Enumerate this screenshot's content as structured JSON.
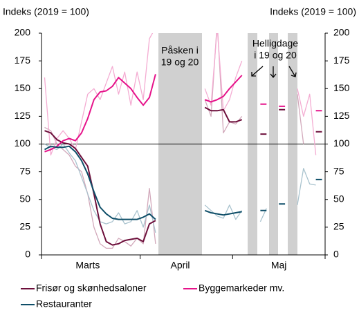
{
  "chart_data": {
    "type": "line",
    "y_label": "Indeks  (2019 = 100)",
    "y2_label": "Indeks  (2019 = 100)",
    "categories": [
      null,
      null,
      null,
      null,
      null,
      null,
      null,
      "Marts",
      null,
      null,
      null,
      null,
      null,
      null,
      null,
      null,
      null,
      null,
      null,
      null,
      null,
      null,
      "April",
      null,
      null,
      null,
      null,
      null,
      null,
      null,
      null,
      null,
      null,
      null,
      null,
      null,
      null,
      null,
      "Maj",
      null,
      null,
      null,
      null,
      null,
      null,
      null
    ],
    "ylim": [
      0,
      200
    ],
    "yticks": [
      0,
      25,
      50,
      75,
      100,
      125,
      150,
      175,
      200
    ],
    "y2lim": [
      0,
      200
    ],
    "y2ticks": [
      0,
      25,
      50,
      75,
      100,
      125,
      150,
      175,
      200
    ],
    "hline": 100,
    "annotations": [
      [
        "Påsken i",
        "19 og 20"
      ],
      [
        "Helligdage",
        "i 19 og 20"
      ]
    ],
    "series": [
      {
        "color": "#d2a9bb",
        "values": [
          115,
          112,
          100,
          95,
          90,
          80,
          75,
          55,
          25,
          10,
          6,
          6,
          15,
          12,
          8,
          15,
          10,
          60,
          10,
          null,
          null,
          null,
          null,
          null,
          null,
          null,
          140,
          125,
          210,
          110,
          120,
          118,
          125,
          null,
          null,
          null,
          null,
          null,
          null,
          null,
          null,
          145,
          100,
          null,
          null,
          null
        ]
      },
      {
        "color": "#f4acd2",
        "values": [
          160,
          90,
          105,
          112,
          105,
          95,
          120,
          145,
          150,
          140,
          155,
          170,
          145,
          165,
          135,
          165,
          140,
          195,
          205,
          null,
          null,
          null,
          null,
          null,
          null,
          null,
          150,
          135,
          205,
          130,
          140,
          160,
          175,
          null,
          null,
          null,
          null,
          null,
          null,
          null,
          null,
          150,
          125,
          145,
          90,
          null
        ]
      },
      {
        "color": "#a9c3ce",
        "values": [
          100,
          97,
          95,
          100,
          92,
          85,
          70,
          55,
          40,
          30,
          28,
          30,
          38,
          28,
          30,
          40,
          25,
          45,
          20,
          null,
          null,
          null,
          null,
          null,
          null,
          null,
          45,
          40,
          35,
          33,
          45,
          32,
          40,
          null,
          null,
          30,
          42,
          null,
          null,
          null,
          null,
          45,
          78,
          64,
          63,
          null
        ]
      },
      {
        "name": "Frisør og skønhedsaloner",
        "color": "#6d0f3b",
        "values": [
          112,
          110,
          104,
          101,
          100,
          96,
          88,
          80,
          55,
          28,
          12,
          9,
          10,
          13,
          14,
          15,
          12,
          28,
          31,
          null,
          null,
          null,
          null,
          null,
          null,
          null,
          133,
          130,
          130,
          131,
          120,
          120,
          122,
          null,
          null,
          109,
          109,
          null,
          131,
          131,
          null,
          null,
          null,
          null,
          111,
          111
        ]
      },
      {
        "name": "Byggemarkeder mv.",
        "color": "#e6138a",
        "values": [
          93,
          95,
          98,
          103,
          105,
          103,
          110,
          123,
          140,
          147,
          148,
          152,
          160,
          155,
          150,
          142,
          135,
          142,
          163,
          null,
          null,
          null,
          null,
          null,
          null,
          null,
          140,
          138,
          140,
          143,
          150,
          156,
          162,
          null,
          null,
          136,
          136,
          null,
          134,
          134,
          null,
          null,
          null,
          null,
          130,
          130
        ]
      },
      {
        "name": "Restauranter",
        "color": "#0e4e68",
        "values": [
          95,
          98,
          97,
          97,
          98,
          93,
          85,
          73,
          57,
          43,
          37,
          33,
          32,
          32,
          32,
          32,
          34,
          37,
          32,
          null,
          null,
          null,
          null,
          null,
          null,
          null,
          40,
          38,
          37,
          36,
          37,
          38,
          39,
          null,
          null,
          40,
          40,
          null,
          46,
          46,
          null,
          null,
          null,
          null,
          68,
          68
        ]
      }
    ]
  }
}
